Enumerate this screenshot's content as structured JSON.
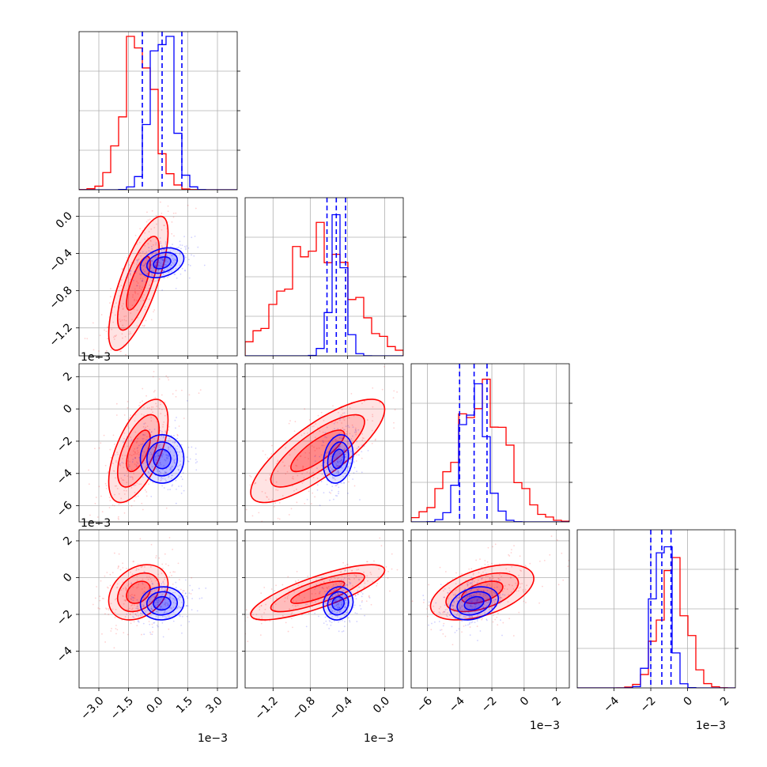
{
  "colors": {
    "red": "#ff0000",
    "blue": "#0000ff",
    "grid": "#b0b0b0"
  },
  "chart_data": {
    "type": "corner",
    "n_params": 4,
    "series": [
      {
        "color": "#ff0000",
        "means": [
          -1.0,
          -0.72,
          -2.6,
          -0.8
        ],
        "sds": [
          0.75,
          0.36,
          1.6,
          0.75
        ],
        "corr": [
          [
            1.0,
            0.75,
            0.6,
            0.3
          ],
          [
            0.75,
            1.0,
            0.8,
            0.8
          ],
          [
            0.6,
            0.8,
            1.0,
            0.5
          ],
          [
            0.3,
            0.8,
            0.5,
            1.0
          ]
        ],
        "hist_peaks": [
          1.0,
          0.87,
          0.93,
          0.85
        ]
      },
      {
        "color": "#0000ff",
        "means": [
          0.2,
          -0.5,
          -3.1,
          -1.4
        ],
        "sds": [
          0.55,
          0.08,
          0.75,
          0.45
        ],
        "corr": [
          [
            1.0,
            0.3,
            0.0,
            0.05
          ],
          [
            0.3,
            1.0,
            0.2,
            0.1
          ],
          [
            0.0,
            0.2,
            1.0,
            0.3
          ],
          [
            0.05,
            0.1,
            0.3,
            1.0
          ]
        ],
        "hist_peaks": [
          1.0,
          0.92,
          0.9,
          0.92
        ]
      }
    ],
    "quantiles_blue": [
      [
        -0.8,
        0.2,
        1.2
      ],
      [
        -0.62,
        -0.52,
        -0.42
      ],
      [
        -4.0,
        -3.1,
        -2.3
      ],
      [
        -2.0,
        -1.4,
        -0.9
      ]
    ],
    "ranges": [
      [
        -4.0,
        4.0
      ],
      [
        -1.5,
        0.2
      ],
      [
        -7.0,
        2.8
      ],
      [
        -6.0,
        2.6
      ]
    ],
    "tick_values": [
      [
        -3.0,
        -1.5,
        0.0,
        1.5,
        3.0
      ],
      [
        -1.2,
        -0.8,
        -0.4,
        0.0
      ],
      [
        -6,
        -4,
        -2,
        0,
        2
      ],
      [
        -4,
        -2,
        0,
        2
      ]
    ],
    "x_tick_labels": [
      [
        "−3.0",
        "−1.5",
        "0.0",
        "1.5",
        "3.0"
      ],
      [
        "−1.2",
        "−0.8",
        "−0.4",
        "0.0"
      ],
      [
        "−6",
        "−4",
        "−2",
        "0",
        "2"
      ],
      [
        "−4",
        "−2",
        "0",
        "2"
      ]
    ],
    "y_tick_labels": {
      "row1": [
        "−1.2",
        "−0.8",
        "−0.4",
        "0.0"
      ],
      "row2": [
        "−6",
        "−4",
        "−2",
        "0",
        "2"
      ],
      "row3": [
        "−4",
        "−2",
        "0",
        "2"
      ]
    },
    "offset_text": "1e−3",
    "grid": true
  }
}
